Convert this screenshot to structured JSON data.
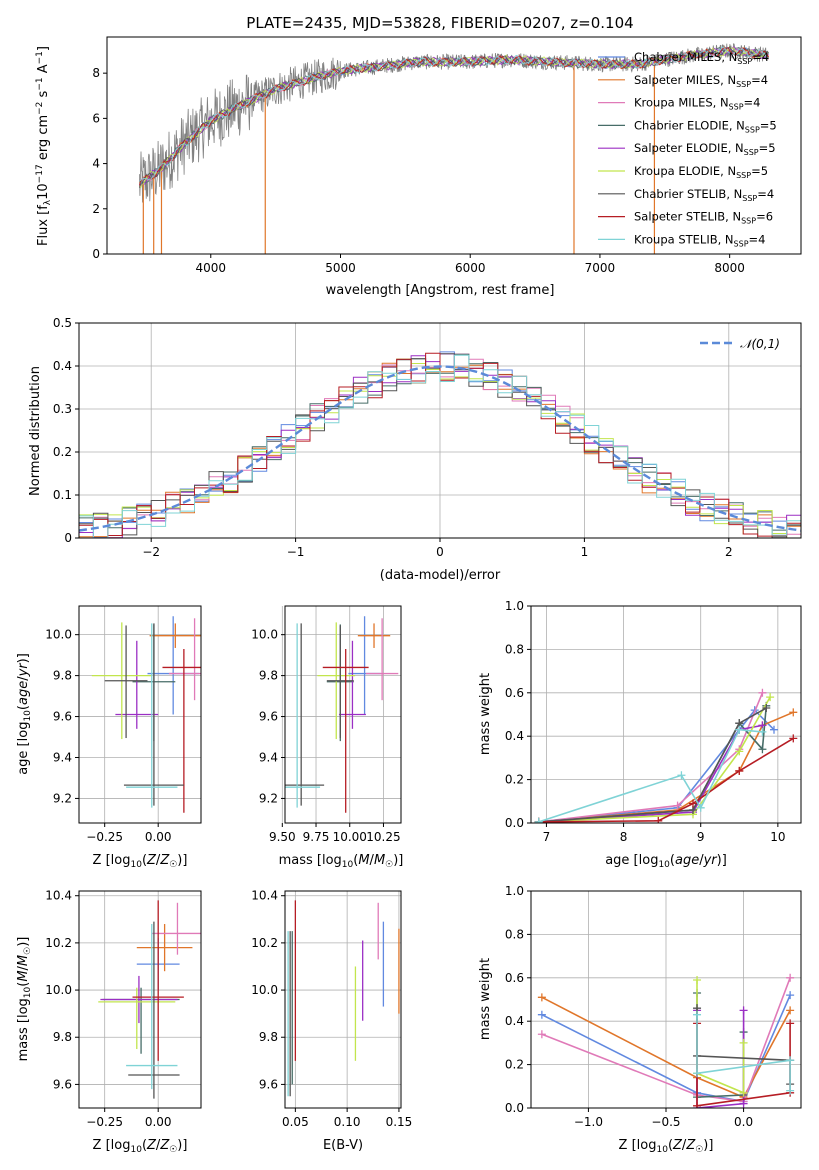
{
  "figure_title": "PLATE=2435, MJD=53828, FIBERID=0207, z=0.104",
  "colors": {
    "Chabrier MILES": "#6189e0",
    "Salpeter MILES": "#e0762a",
    "Kroupa MILES": "#e07ab8",
    "Chabrier ELODIE": "#476d68",
    "Salpeter ELODIE": "#9b2fc4",
    "Kroupa ELODIE": "#c2e54d",
    "Chabrier STELIB": "#555555",
    "Salpeter STELIB": "#b61d24",
    "Kroupa STELIB": "#7fd3d6",
    "data": "#808080",
    "gaussian": "#5b8ad8"
  },
  "chart_data": [
    {
      "id": "spectrum",
      "type": "line",
      "title": "PLATE=2435, MJD=53828, FIBERID=0207, z=0.104",
      "xlabel": "wavelength [Angstrom, rest frame]",
      "ylabel": "Flux [f_λ 10^-17 erg cm^-2 s^-1 A^-1]",
      "xlim": [
        3200,
        8550
      ],
      "ylim": [
        0,
        9.6
      ],
      "xticks": [
        4000,
        5000,
        6000,
        7000,
        8000
      ],
      "yticks": [
        0,
        2,
        4,
        6,
        8
      ],
      "grid": false,
      "legend_position": "right",
      "continuum": {
        "x": [
          3450,
          3600,
          3800,
          4000,
          4200,
          4500,
          4800,
          5000,
          5300,
          5600,
          6000,
          6300,
          6600,
          7000,
          7300,
          7600,
          8000,
          8300
        ],
        "y": [
          3.1,
          3.7,
          4.9,
          5.9,
          6.5,
          7.3,
          7.8,
          8.1,
          8.3,
          8.5,
          8.5,
          8.6,
          8.5,
          8.4,
          8.4,
          8.7,
          9.0,
          8.8
        ]
      },
      "legend": [
        {
          "name": "Chabrier MILES",
          "label": "Chabrier MILES, N",
          "sub": "SSP",
          "suffix": "=4"
        },
        {
          "name": "Salpeter MILES",
          "label": "Salpeter MILES, N",
          "sub": "SSP",
          "suffix": "=4"
        },
        {
          "name": "Kroupa MILES",
          "label": "Kroupa MILES, N",
          "sub": "SSP",
          "suffix": "=4"
        },
        {
          "name": "Chabrier ELODIE",
          "label": "Chabrier ELODIE, N",
          "sub": "SSP",
          "suffix": "=5"
        },
        {
          "name": "Salpeter ELODIE",
          "label": "Salpeter ELODIE, N",
          "sub": "SSP",
          "suffix": "=5"
        },
        {
          "name": "Kroupa ELODIE",
          "label": "Kroupa ELODIE, N",
          "sub": "SSP",
          "suffix": "=5"
        },
        {
          "name": "Chabrier STELIB",
          "label": "Chabrier STELIB, N",
          "sub": "SSP",
          "suffix": "=4"
        },
        {
          "name": "Salpeter STELIB",
          "label": "Salpeter STELIB, N",
          "sub": "SSP",
          "suffix": "=6"
        },
        {
          "name": "Kroupa STELIB",
          "label": "Kroupa STELIB, N",
          "sub": "SSP",
          "suffix": "=4"
        }
      ]
    },
    {
      "id": "residuals",
      "type": "histogram",
      "xlabel": "(data-model)/error",
      "ylabel": "Normed distribution",
      "xlim": [
        -2.5,
        2.5
      ],
      "ylim": [
        0,
        0.5
      ],
      "xticks": [
        -2,
        -1,
        0,
        1,
        2
      ],
      "yticks": [
        0.0,
        0.1,
        0.2,
        0.3,
        0.4,
        0.5
      ],
      "grid": true,
      "legend": "𝒩(0,1)",
      "legend_position": "top-right",
      "bins": 50
    },
    {
      "id": "age_vs_Z",
      "type": "scatter",
      "xlabel": "Z [log10(Z/Z⊙)]",
      "ylabel": "age [log10(age/yr)]",
      "xlim": [
        -0.37,
        0.2
      ],
      "ylim": [
        9.08,
        10.14
      ],
      "xticks": [
        -0.25,
        0.0
      ],
      "yticks": [
        9.2,
        9.4,
        9.6,
        9.8,
        10.0
      ],
      "grid": true,
      "points": [
        {
          "model": "Chabrier MILES",
          "x": 0.07,
          "y": 9.81,
          "xerr": 0.12,
          "yerr": [
            0.2,
            0.28
          ]
        },
        {
          "model": "Salpeter MILES",
          "x": 0.08,
          "y": 9.995,
          "xerr": 0.12,
          "yerr": [
            0.06,
            0.06
          ]
        },
        {
          "model": "Kroupa MILES",
          "x": 0.17,
          "y": 9.81,
          "xerr": 0.12,
          "yerr": [
            0.13,
            0.27
          ]
        },
        {
          "model": "Chabrier ELODIE",
          "x": -0.02,
          "y": 9.77,
          "xerr": 0.1,
          "yerr": [
            0.29,
            0.28
          ]
        },
        {
          "model": "Salpeter ELODIE",
          "x": -0.1,
          "y": 9.61,
          "xerr": 0.1,
          "yerr": [
            0.07,
            0.36
          ]
        },
        {
          "model": "Kroupa ELODIE",
          "x": -0.17,
          "y": 9.8,
          "xerr": 0.14,
          "yerr": [
            0.31,
            0.26
          ]
        },
        {
          "model": "Chabrier STELIB",
          "x": -0.15,
          "y": 9.775,
          "xerr": 0.1,
          "yerr": [
            0.28,
            0.27
          ]
        },
        {
          "model": "Salpeter STELIB",
          "x": 0.12,
          "y": 9.84,
          "xerr": 0.1,
          "yerr": [
            0.71,
            0.09
          ]
        },
        {
          "model": "Chabrier STELIB",
          "x": -0.02,
          "y": 9.265,
          "xerr": 0.14,
          "yerr": [
            0.1,
            0.79
          ]
        },
        {
          "model": "Kroupa STELIB",
          "x": -0.03,
          "y": 9.255,
          "xerr": 0.12,
          "yerr": [
            0.1,
            0.8
          ]
        }
      ]
    },
    {
      "id": "age_vs_mass",
      "type": "scatter",
      "xlabel": "mass [log10(M/M⊙)]",
      "ylabel": "",
      "xlim": [
        9.52,
        10.38
      ],
      "ylim": [
        9.08,
        10.14
      ],
      "xticks": [
        9.5,
        9.75,
        10.0,
        10.25
      ],
      "yticks": [
        9.2,
        9.4,
        9.6,
        9.8,
        10.0
      ],
      "grid": true,
      "points": [
        {
          "model": "Chabrier MILES",
          "x": 10.11,
          "y": 9.81,
          "xerr": 0.12,
          "yerr": [
            0.2,
            0.28
          ]
        },
        {
          "model": "Salpeter MILES",
          "x": 10.18,
          "y": 9.995,
          "xerr": 0.12,
          "yerr": [
            0.06,
            0.06
          ]
        },
        {
          "model": "Kroupa MILES",
          "x": 10.24,
          "y": 9.81,
          "xerr": 0.12,
          "yerr": [
            0.13,
            0.27
          ]
        },
        {
          "model": "Chabrier ELODIE",
          "x": 9.93,
          "y": 9.77,
          "xerr": 0.1,
          "yerr": [
            0.29,
            0.28
          ]
        },
        {
          "model": "Salpeter ELODIE",
          "x": 10.02,
          "y": 9.61,
          "xerr": 0.1,
          "yerr": [
            0.07,
            0.36
          ]
        },
        {
          "model": "Kroupa ELODIE",
          "x": 9.9,
          "y": 9.8,
          "xerr": 0.14,
          "yerr": [
            0.31,
            0.26
          ]
        },
        {
          "model": "Chabrier STELIB",
          "x": 9.93,
          "y": 9.775,
          "xerr": 0.1,
          "yerr": [
            0.28,
            0.27
          ]
        },
        {
          "model": "Salpeter STELIB",
          "x": 9.97,
          "y": 9.84,
          "xerr": 0.17,
          "yerr": [
            0.71,
            0.09
          ]
        },
        {
          "model": "Chabrier STELIB",
          "x": 9.64,
          "y": 9.265,
          "xerr": 0.17,
          "yerr": [
            0.1,
            0.79
          ]
        },
        {
          "model": "Kroupa STELIB",
          "x": 9.61,
          "y": 9.255,
          "xerr": 0.17,
          "yerr": [
            0.1,
            0.8
          ]
        }
      ]
    },
    {
      "id": "mass_weight_vs_age",
      "type": "line",
      "xlabel": "age [log10(age/yr)]",
      "ylabel": "mass weight",
      "xlim": [
        6.8,
        10.3
      ],
      "ylim": [
        0,
        1
      ],
      "xticks": [
        7,
        8,
        9,
        10
      ],
      "yticks": [
        0.0,
        0.2,
        0.4,
        0.6,
        0.8,
        1.0
      ],
      "grid": true,
      "series": [
        {
          "model": "Chabrier MILES",
          "x": [
            6.9,
            8.7,
            9.5,
            9.7,
            9.95
          ],
          "y": [
            0.005,
            0.07,
            0.43,
            0.52,
            0.43
          ]
        },
        {
          "model": "Salpeter MILES",
          "x": [
            6.9,
            8.7,
            9.5,
            9.8,
            10.2
          ],
          "y": [
            0.005,
            0.06,
            0.24,
            0.45,
            0.51
          ]
        },
        {
          "model": "Kroupa MILES",
          "x": [
            6.9,
            8.7,
            9.5,
            9.8
          ],
          "y": [
            0.005,
            0.08,
            0.34,
            0.6
          ]
        },
        {
          "model": "Chabrier ELODIE",
          "x": [
            6.9,
            8.9,
            9.5,
            9.8,
            9.85
          ],
          "y": [
            0.005,
            0.06,
            0.46,
            0.34,
            0.54
          ]
        },
        {
          "model": "Salpeter ELODIE",
          "x": [
            6.9,
            8.9,
            9.5,
            9.8
          ],
          "y": [
            0.005,
            0.05,
            0.43,
            0.45
          ]
        },
        {
          "model": "Kroupa ELODIE",
          "x": [
            6.9,
            8.9,
            9.5,
            9.9
          ],
          "y": [
            0.005,
            0.04,
            0.33,
            0.58
          ]
        },
        {
          "model": "Chabrier STELIB",
          "x": [
            6.9,
            8.9,
            9.5,
            9.85
          ],
          "y": [
            0.005,
            0.06,
            0.46,
            0.53
          ]
        },
        {
          "model": "Salpeter STELIB",
          "x": [
            6.9,
            8.45,
            8.9,
            9.5,
            10.2
          ],
          "y": [
            0.005,
            0.01,
            0.09,
            0.24,
            0.39
          ]
        },
        {
          "model": "Kroupa STELIB",
          "x": [
            6.9,
            8.75,
            9.0,
            9.5,
            9.8
          ],
          "y": [
            0.005,
            0.22,
            0.07,
            0.43,
            0.42
          ]
        }
      ]
    },
    {
      "id": "mass_vs_Z",
      "type": "scatter",
      "xlabel": "Z [log10(Z/Z⊙)]",
      "ylabel": "mass [log10(M/M⊙)]",
      "xlim": [
        -0.37,
        0.2
      ],
      "ylim": [
        9.5,
        10.42
      ],
      "xticks": [
        -0.25,
        0.0
      ],
      "yticks": [
        9.6,
        9.8,
        10.0,
        10.2,
        10.4
      ],
      "grid": true,
      "points": [
        {
          "model": "Chabrier MILES",
          "x": 0.0,
          "y": 10.11,
          "xerr": 0.1,
          "yerr": [
            0.11,
            0.11
          ]
        },
        {
          "model": "Salpeter MILES",
          "x": 0.03,
          "y": 10.18,
          "xerr": 0.13,
          "yerr": [
            0.1,
            0.1
          ]
        },
        {
          "model": "Kroupa MILES",
          "x": 0.09,
          "y": 10.24,
          "xerr": 0.12,
          "yerr": [
            0.09,
            0.13
          ]
        },
        {
          "model": "Chabrier ELODIE",
          "x": -0.08,
          "y": 9.96,
          "xerr": 0.18,
          "yerr": [
            0.23,
            0.05
          ]
        },
        {
          "model": "Salpeter ELODIE",
          "x": -0.09,
          "y": 9.96,
          "xerr": 0.18,
          "yerr": [
            0.1,
            0.1
          ]
        },
        {
          "model": "Kroupa ELODIE",
          "x": -0.1,
          "y": 9.95,
          "xerr": 0.18,
          "yerr": [
            0.2,
            0.06
          ]
        },
        {
          "model": "Chabrier STELIB",
          "x": -0.02,
          "y": 9.64,
          "xerr": 0.12,
          "yerr": [
            0.1,
            0.65
          ]
        },
        {
          "model": "Salpeter STELIB",
          "x": 0.0,
          "y": 9.97,
          "xerr": 0.12,
          "yerr": [
            0.27,
            0.41
          ]
        },
        {
          "model": "Kroupa STELIB",
          "x": -0.03,
          "y": 9.68,
          "xerr": 0.12,
          "yerr": [
            0.1,
            0.6
          ]
        }
      ]
    },
    {
      "id": "mass_vs_ebv",
      "type": "scatter",
      "xlabel": "E(B-V)",
      "ylabel": "",
      "xlim": [
        0.04,
        0.152
      ],
      "ylim": [
        9.5,
        10.42
      ],
      "xticks": [
        0.05,
        0.1,
        0.15
      ],
      "yticks": [
        9.6,
        9.8,
        10.0,
        10.2,
        10.4
      ],
      "grid": true,
      "points": [
        {
          "model": "Chabrier MILES",
          "x": 0.135,
          "y": 10.11,
          "xerr": 0.0,
          "yerr": [
            0.18,
            0.18
          ]
        },
        {
          "model": "Salpeter MILES",
          "x": 0.15,
          "y": 10.08,
          "xerr": 0.0,
          "yerr": [
            0.18,
            0.18
          ]
        },
        {
          "model": "Kroupa MILES",
          "x": 0.13,
          "y": 10.24,
          "xerr": 0.0,
          "yerr": [
            0.11,
            0.13
          ]
        },
        {
          "model": "Chabrier ELODIE",
          "x": 0.047,
          "y": 9.8,
          "xerr": 0.0,
          "yerr": [
            0.2,
            0.45
          ]
        },
        {
          "model": "Salpeter ELODIE",
          "x": 0.115,
          "y": 10.04,
          "xerr": 0.0,
          "yerr": [
            0.17,
            0.17
          ]
        },
        {
          "model": "Kroupa ELODIE",
          "x": 0.108,
          "y": 9.9,
          "xerr": 0.0,
          "yerr": [
            0.2,
            0.2
          ]
        },
        {
          "model": "Chabrier STELIB",
          "x": 0.045,
          "y": 9.8,
          "xerr": 0.0,
          "yerr": [
            0.25,
            0.45
          ]
        },
        {
          "model": "Salpeter STELIB",
          "x": 0.05,
          "y": 10.0,
          "xerr": 0.0,
          "yerr": [
            0.3,
            0.38
          ]
        },
        {
          "model": "Kroupa STELIB",
          "x": 0.043,
          "y": 9.75,
          "xerr": 0.0,
          "yerr": [
            0.2,
            0.5
          ]
        }
      ]
    },
    {
      "id": "mass_weight_vs_Z",
      "type": "line",
      "xlabel": "Z [log10(Z/Z⊙)]",
      "ylabel": "mass weight",
      "xlim": [
        -1.37,
        0.37
      ],
      "ylim": [
        0,
        1
      ],
      "xticks": [
        -1.0,
        -0.5,
        0.0
      ],
      "yticks": [
        0.0,
        0.2,
        0.4,
        0.6,
        0.8,
        1.0
      ],
      "grid": true,
      "series": [
        {
          "model": "Chabrier MILES",
          "x": [
            -1.3,
            -0.3,
            0.0,
            0.3
          ],
          "y": [
            0.43,
            0.07,
            0.03,
            0.52
          ]
        },
        {
          "model": "Salpeter MILES",
          "x": [
            -1.3,
            -0.3,
            0.0,
            0.3
          ],
          "y": [
            0.51,
            0.14,
            0.05,
            0.45
          ]
        },
        {
          "model": "Kroupa MILES",
          "x": [
            -1.3,
            -0.3,
            0.0,
            0.3
          ],
          "y": [
            0.34,
            0.06,
            0.03,
            0.6
          ]
        },
        {
          "model": "Chabrier ELODIE",
          "x": [
            -0.3,
            -0.3,
            0.0,
            0.0
          ],
          "y": [
            0.53,
            0.05,
            0.06,
            0.35
          ]
        },
        {
          "model": "Salpeter ELODIE",
          "x": [
            -0.3,
            -0.3,
            0.0,
            0.0
          ],
          "y": [
            0.45,
            0.0,
            0.02,
            0.45
          ]
        },
        {
          "model": "Kroupa ELODIE",
          "x": [
            -0.3,
            -0.3,
            0.0,
            0.0
          ],
          "y": [
            0.59,
            0.16,
            0.07,
            0.3
          ]
        },
        {
          "model": "Chabrier STELIB",
          "x": [
            -0.3,
            -0.3,
            0.3,
            0.3
          ],
          "y": [
            0.46,
            0.24,
            0.22,
            0.11
          ]
        },
        {
          "model": "Salpeter STELIB",
          "x": [
            -0.3,
            -0.3,
            0.3,
            0.3
          ],
          "y": [
            0.39,
            0.01,
            0.07,
            0.39
          ]
        },
        {
          "model": "Kroupa STELIB",
          "x": [
            -0.3,
            -0.3,
            0.3,
            0.3
          ],
          "y": [
            0.43,
            0.16,
            0.22,
            0.08
          ]
        }
      ]
    }
  ]
}
